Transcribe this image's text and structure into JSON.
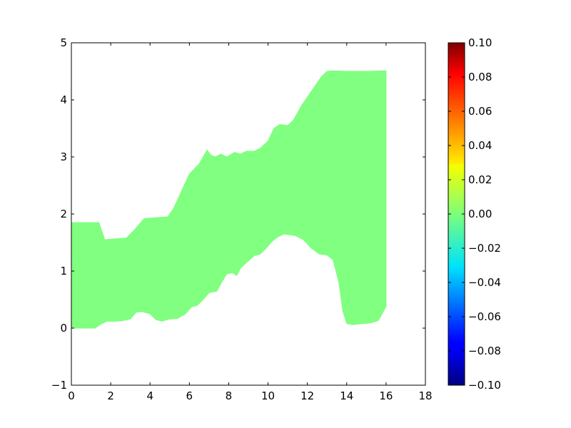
{
  "chart_data": {
    "type": "area",
    "title": "",
    "xlabel": "",
    "ylabel": "",
    "xlim": [
      0,
      18
    ],
    "ylim": [
      -1,
      5
    ],
    "xticks": [
      "0",
      "2",
      "4",
      "6",
      "8",
      "10",
      "12",
      "14",
      "16",
      "18"
    ],
    "yticks": [
      "−1",
      "0",
      "1",
      "2",
      "3",
      "4",
      "5"
    ],
    "grid": false,
    "fill_color": "#80ff80",
    "series": [
      {
        "upper": {
          "x": [
            0,
            1.4,
            1.7,
            2.8,
            3.2,
            3.7,
            4.9,
            5.2,
            5.6,
            6.0,
            6.5,
            6.9,
            7.1,
            7.3,
            7.6,
            7.9,
            8.3,
            8.6,
            8.9,
            9.3,
            9.6,
            10.0,
            10.3,
            10.6,
            10.8,
            11.0,
            11.3,
            11.7,
            12.2,
            12.7,
            13.0,
            13.3,
            14.0,
            15.0,
            16.0
          ],
          "y": [
            1.85,
            1.85,
            1.55,
            1.58,
            1.72,
            1.92,
            1.95,
            2.1,
            2.4,
            2.7,
            2.88,
            3.12,
            3.03,
            3.0,
            3.05,
            3.0,
            3.08,
            3.05,
            3.1,
            3.1,
            3.15,
            3.28,
            3.5,
            3.57,
            3.56,
            3.55,
            3.65,
            3.9,
            4.15,
            4.4,
            4.5,
            4.51,
            4.5,
            4.5,
            4.51
          ]
        },
        "lower": {
          "x": [
            0,
            1.2,
            1.5,
            1.8,
            2.2,
            2.6,
            3.0,
            3.3,
            3.6,
            4.0,
            4.3,
            4.6,
            5.0,
            5.4,
            5.8,
            6.1,
            6.4,
            6.7,
            7.0,
            7.4,
            7.6,
            7.9,
            8.2,
            8.4,
            8.6,
            8.9,
            9.3,
            9.6,
            9.9,
            10.2,
            10.5,
            10.8,
            11.0,
            11.4,
            11.8,
            12.2,
            12.6,
            13.0,
            13.3,
            13.6,
            13.8,
            14.0,
            14.3,
            14.8,
            15.2,
            15.6,
            16.0
          ],
          "y": [
            0.0,
            0.0,
            0.07,
            0.12,
            0.12,
            0.13,
            0.16,
            0.28,
            0.29,
            0.25,
            0.15,
            0.12,
            0.16,
            0.17,
            0.25,
            0.37,
            0.4,
            0.5,
            0.62,
            0.65,
            0.78,
            0.95,
            0.97,
            0.92,
            1.05,
            1.15,
            1.27,
            1.3,
            1.4,
            1.52,
            1.6,
            1.65,
            1.64,
            1.62,
            1.55,
            1.4,
            1.3,
            1.28,
            1.2,
            0.8,
            0.3,
            0.08,
            0.06,
            0.08,
            0.09,
            0.13,
            0.38
          ]
        }
      }
    ],
    "colorbar": {
      "min": -0.1,
      "max": 0.1,
      "ticks": [
        "0.10",
        "0.08",
        "0.06",
        "0.04",
        "0.02",
        "0.00",
        "−0.02",
        "−0.04",
        "−0.06",
        "−0.08",
        "−0.10"
      ],
      "tick_values": [
        0.1,
        0.08,
        0.06,
        0.04,
        0.02,
        0.0,
        -0.02,
        -0.04,
        -0.06,
        -0.08,
        -0.1
      ],
      "colormap": "jet"
    }
  }
}
